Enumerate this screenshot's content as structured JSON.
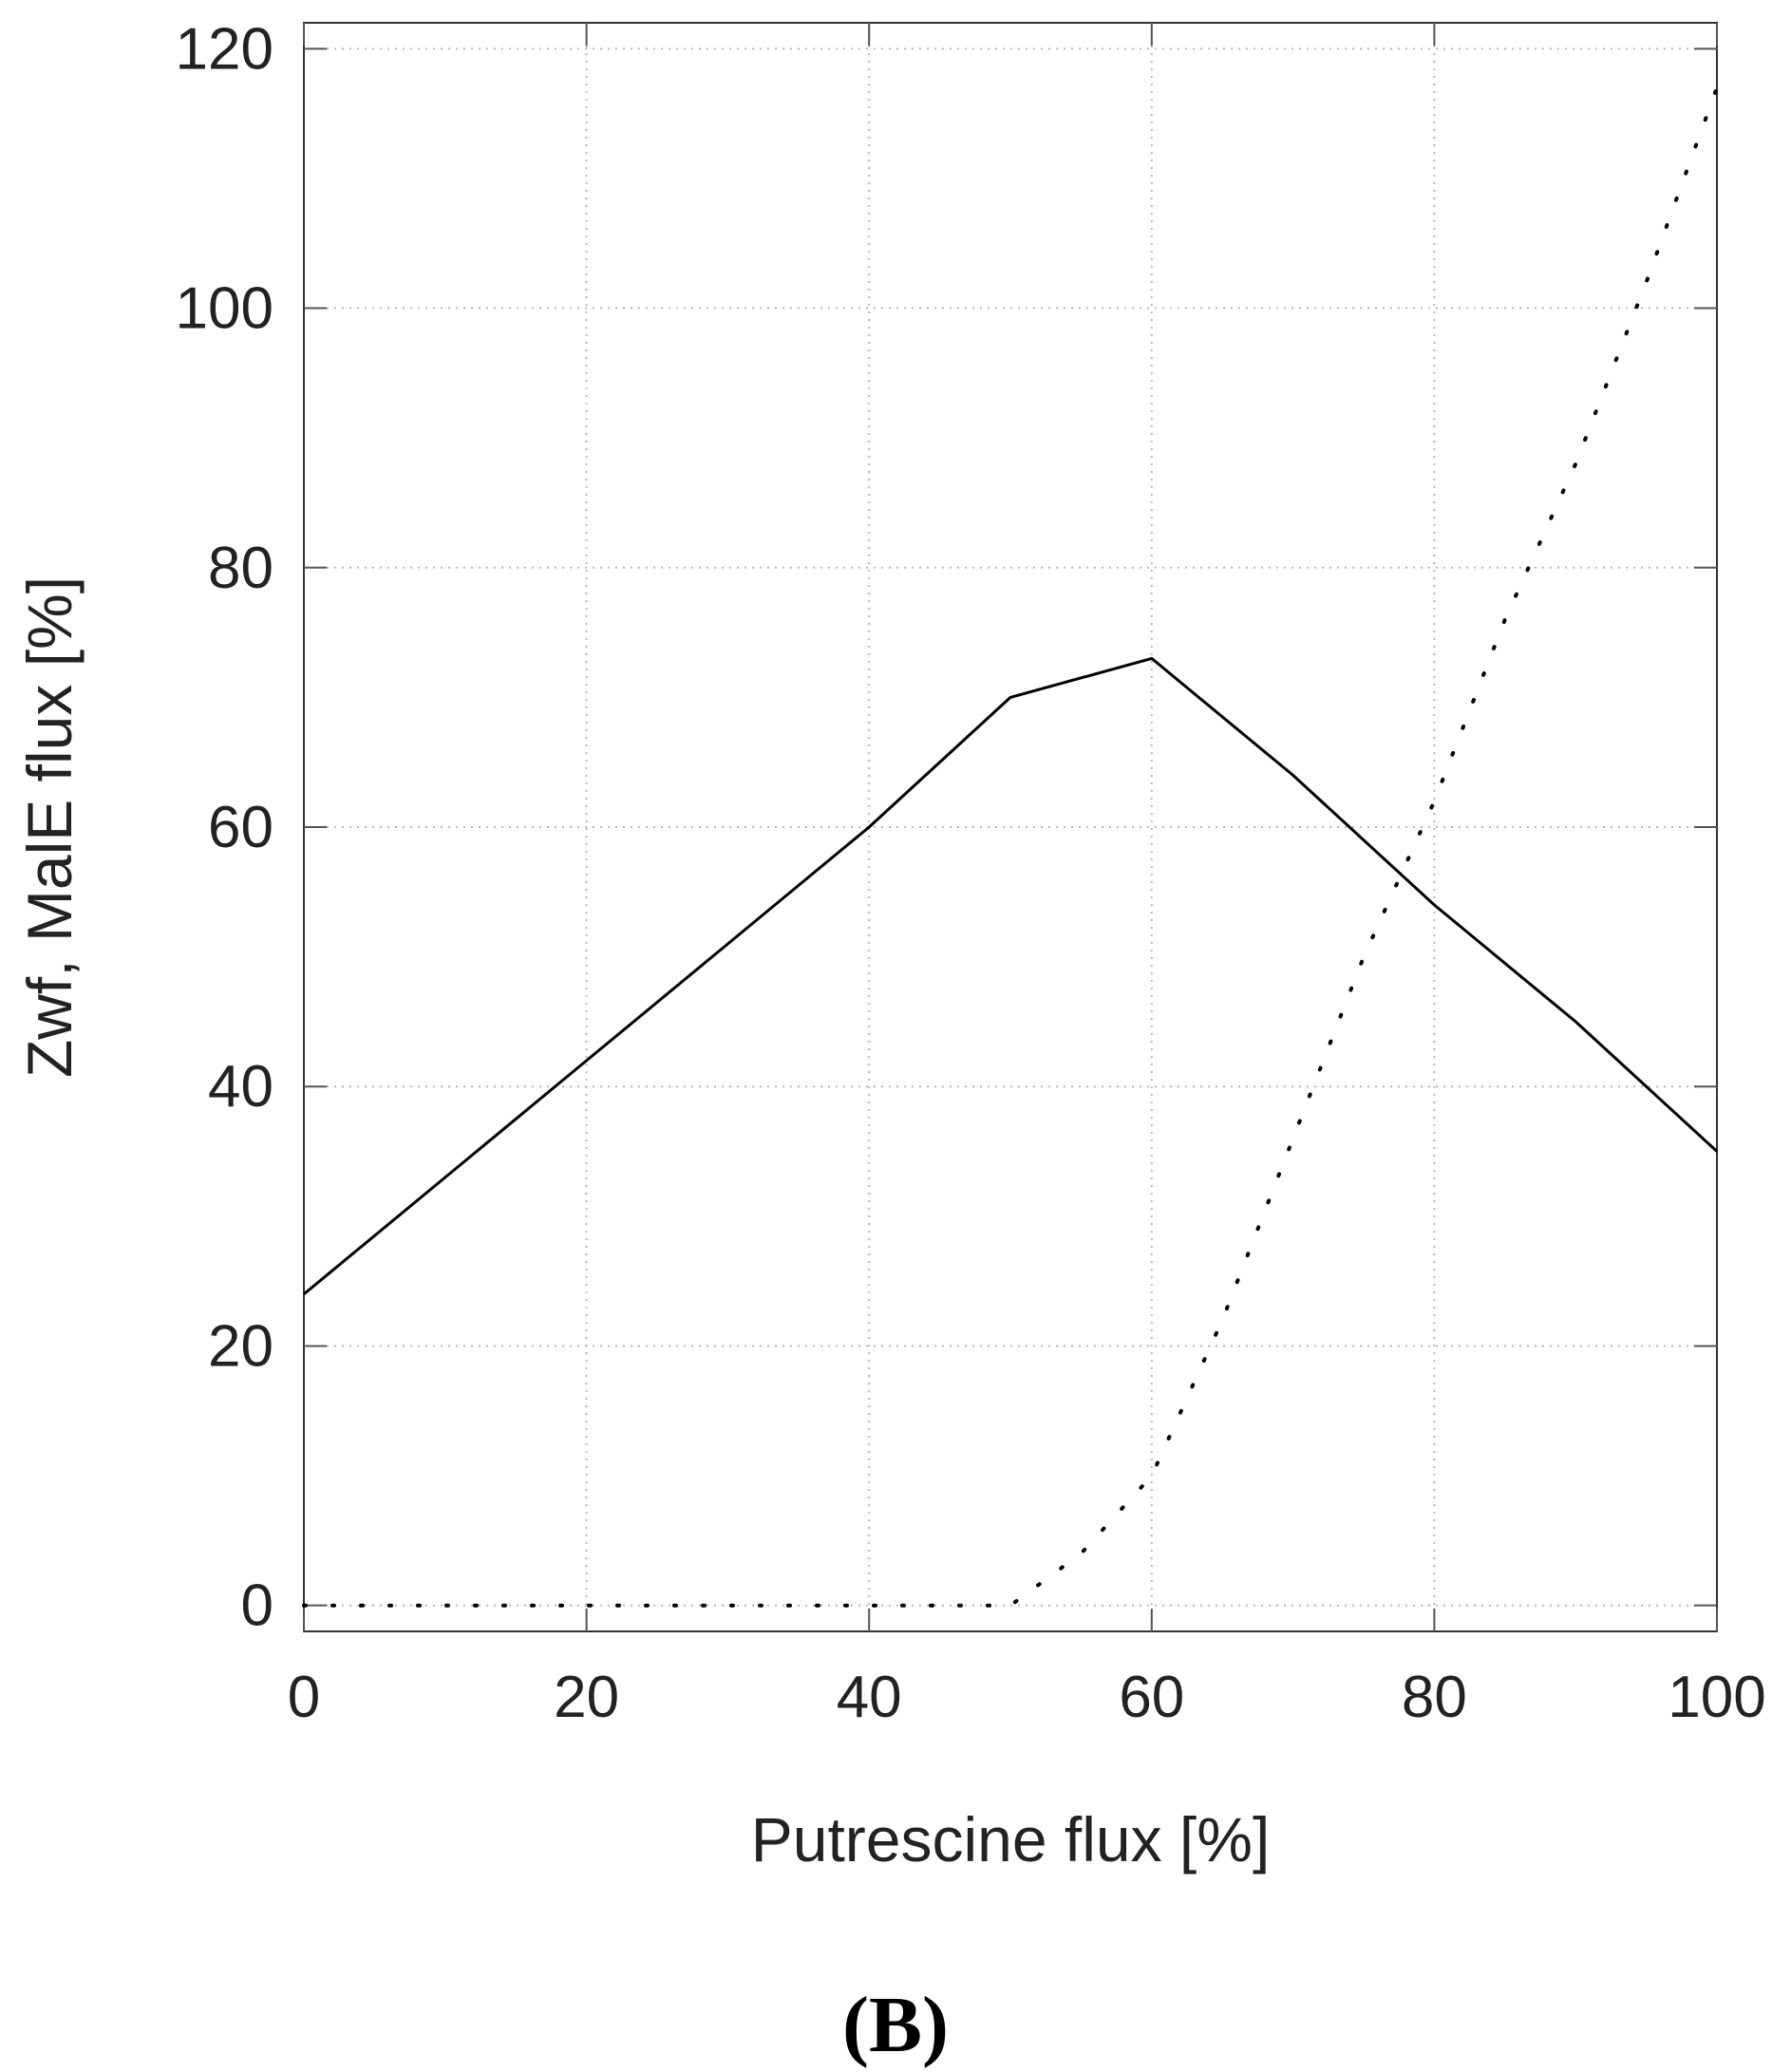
{
  "chart_data": {
    "type": "line",
    "panel_label": "(B)",
    "xlabel": "Putrescine flux [%]",
    "ylabel": "Zwf, MalE flux [%]",
    "xlim": [
      0,
      100
    ],
    "ylim": [
      -2,
      122
    ],
    "x_ticks": [
      0,
      20,
      40,
      60,
      80,
      100
    ],
    "y_ticks": [
      0,
      20,
      40,
      60,
      80,
      100,
      120
    ],
    "grid": true,
    "legend": "none",
    "series": [
      {
        "style": "solid",
        "color": "#000000",
        "x": [
          0,
          10,
          20,
          30,
          40,
          50,
          60,
          70,
          80,
          90,
          100
        ],
        "y": [
          24,
          33,
          42,
          51,
          60,
          70,
          73,
          64,
          54,
          45,
          35
        ]
      },
      {
        "style": "dotted",
        "color": "#000000",
        "x": [
          0,
          10,
          20,
          30,
          40,
          50,
          55,
          60,
          65,
          70,
          75,
          80,
          85,
          90,
          95,
          100
        ],
        "y": [
          0,
          0,
          0,
          0,
          0,
          0,
          4,
          10,
          22,
          36,
          50,
          62,
          76,
          88,
          102,
          117
        ]
      }
    ]
  }
}
